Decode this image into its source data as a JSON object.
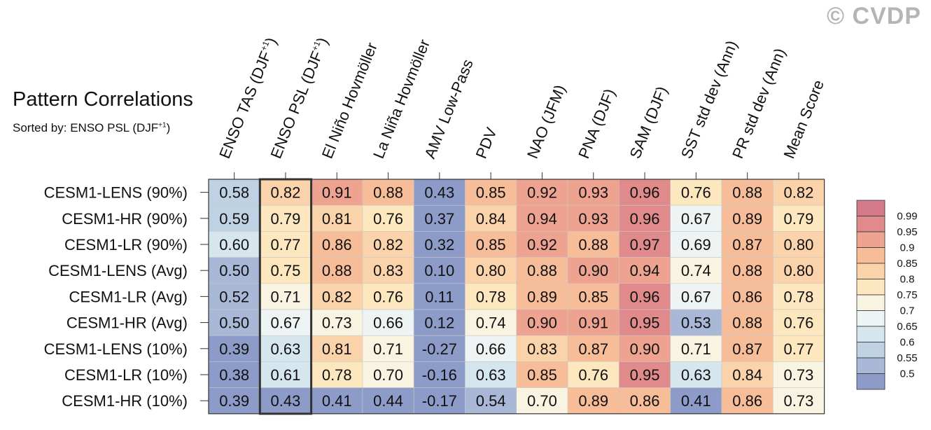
{
  "watermark": "© CVDP",
  "title": "Pattern Correlations",
  "subtitle_prefix": "Sorted by: ENSO PSL (DJF",
  "subtitle_sup": "+1",
  "subtitle_suffix": ")",
  "chart_data": {
    "type": "heatmap",
    "title": "Pattern Correlations",
    "sorted_by": "ENSO PSL (DJF+1)",
    "highlighted_column": "ENSO PSL (DJF+1)",
    "columns": [
      {
        "label": "ENSO TAS (DJF",
        "sup": "+1",
        "tail": ")"
      },
      {
        "label": "ENSO PSL (DJF",
        "sup": "+1",
        "tail": ")"
      },
      {
        "label": "El Niño Hovmöller",
        "sup": "",
        "tail": ""
      },
      {
        "label": "La Niña Hovmöller",
        "sup": "",
        "tail": ""
      },
      {
        "label": "AMV Low-Pass",
        "sup": "",
        "tail": ""
      },
      {
        "label": "PDV",
        "sup": "",
        "tail": ""
      },
      {
        "label": "NAO (JFM)",
        "sup": "",
        "tail": ""
      },
      {
        "label": "PNA (DJF)",
        "sup": "",
        "tail": ""
      },
      {
        "label": "SAM (DJF)",
        "sup": "",
        "tail": ""
      },
      {
        "label": "SST std dev (Ann)",
        "sup": "",
        "tail": ""
      },
      {
        "label": "PR std dev (Ann)",
        "sup": "",
        "tail": ""
      },
      {
        "label": "Mean Score",
        "sup": "",
        "tail": ""
      }
    ],
    "rows": [
      "CESM1-LENS (90%)",
      "CESM1-HR (90%)",
      "CESM1-LR (90%)",
      "CESM1-LENS (Avg)",
      "CESM1-LR (Avg)",
      "CESM1-HR (Avg)",
      "CESM1-LENS (10%)",
      "CESM1-LR (10%)",
      "CESM1-HR (10%)"
    ],
    "values": [
      [
        0.58,
        0.82,
        0.91,
        0.88,
        0.43,
        0.85,
        0.92,
        0.93,
        0.96,
        0.76,
        0.88,
        0.82
      ],
      [
        0.59,
        0.79,
        0.81,
        0.76,
        0.37,
        0.84,
        0.94,
        0.93,
        0.96,
        0.67,
        0.89,
        0.79
      ],
      [
        0.6,
        0.77,
        0.86,
        0.82,
        0.32,
        0.85,
        0.92,
        0.88,
        0.97,
        0.69,
        0.87,
        0.8
      ],
      [
        0.5,
        0.75,
        0.88,
        0.83,
        0.1,
        0.8,
        0.88,
        0.9,
        0.94,
        0.74,
        0.88,
        0.8
      ],
      [
        0.52,
        0.71,
        0.82,
        0.76,
        0.11,
        0.78,
        0.89,
        0.85,
        0.96,
        0.67,
        0.86,
        0.78
      ],
      [
        0.5,
        0.67,
        0.73,
        0.66,
        0.12,
        0.74,
        0.9,
        0.91,
        0.95,
        0.53,
        0.88,
        0.76
      ],
      [
        0.39,
        0.63,
        0.81,
        0.71,
        -0.27,
        0.66,
        0.83,
        0.87,
        0.9,
        0.71,
        0.87,
        0.77
      ],
      [
        0.38,
        0.61,
        0.78,
        0.7,
        -0.16,
        0.63,
        0.85,
        0.76,
        0.95,
        0.63,
        0.84,
        0.73
      ],
      [
        0.39,
        0.43,
        0.41,
        0.44,
        -0.17,
        0.54,
        0.7,
        0.89,
        0.86,
        0.41,
        0.86,
        0.73
      ]
    ],
    "colorbar": {
      "labels": [
        "0.99",
        "0.95",
        "0.9",
        "0.85",
        "0.8",
        "0.75",
        "0.7",
        "0.65",
        "0.6",
        "0.55",
        "0.5"
      ],
      "thresholds": [
        0.5,
        0.55,
        0.6,
        0.65,
        0.7,
        0.75,
        0.8,
        0.85,
        0.9,
        0.95,
        0.99
      ],
      "colors": [
        "#8d9bc8",
        "#a8b8d6",
        "#bfd2e3",
        "#d6e6ef",
        "#eef3f3",
        "#f9f4e1",
        "#fde7bf",
        "#fbd3aa",
        "#f7bc98",
        "#eea390",
        "#e08a8c",
        "#d57a8b"
      ]
    }
  }
}
